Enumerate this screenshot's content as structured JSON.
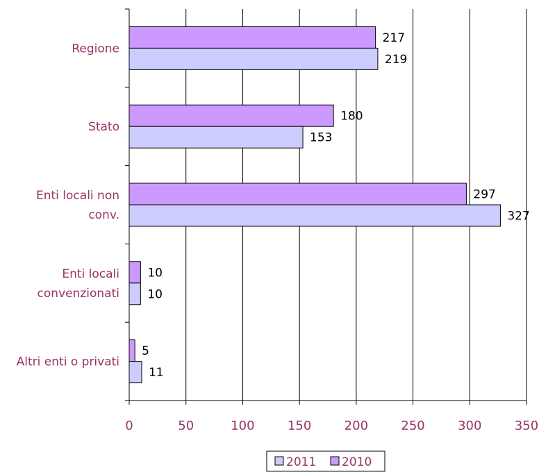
{
  "chart_data": {
    "type": "bar",
    "orientation": "horizontal",
    "categories": [
      "Regione",
      "Stato",
      "Enti locali non conv.",
      "Enti locali convenzionati",
      "Altri enti o privati"
    ],
    "category_lines": [
      [
        "Regione"
      ],
      [
        "Stato"
      ],
      [
        "Enti locali non",
        "conv."
      ],
      [
        "Enti locali",
        "convenzionati"
      ],
      [
        "Altri enti o privati"
      ]
    ],
    "series": [
      {
        "name": "2010",
        "values": [
          217,
          180,
          297,
          10,
          5
        ],
        "color": "#cc99ff"
      },
      {
        "name": "2011",
        "values": [
          219,
          153,
          327,
          10,
          11
        ],
        "color": "#ccccff"
      }
    ],
    "legend_order": [
      "2011",
      "2010"
    ],
    "xlim": [
      0,
      350
    ],
    "xticks": [
      0,
      50,
      100,
      150,
      200,
      250,
      300,
      350
    ],
    "xticks_text": [
      "0",
      "50",
      "100",
      "150",
      "200",
      "250",
      "300",
      "350"
    ],
    "value_labels_text": [
      [
        "217",
        "180",
        "297",
        "10",
        "5"
      ],
      [
        "219",
        "153",
        "327",
        "10",
        "11"
      ]
    ],
    "grid": "vertical",
    "legend_position": "bottom",
    "label_color": "#993366",
    "title": "",
    "xlabel": "",
    "ylabel": ""
  }
}
